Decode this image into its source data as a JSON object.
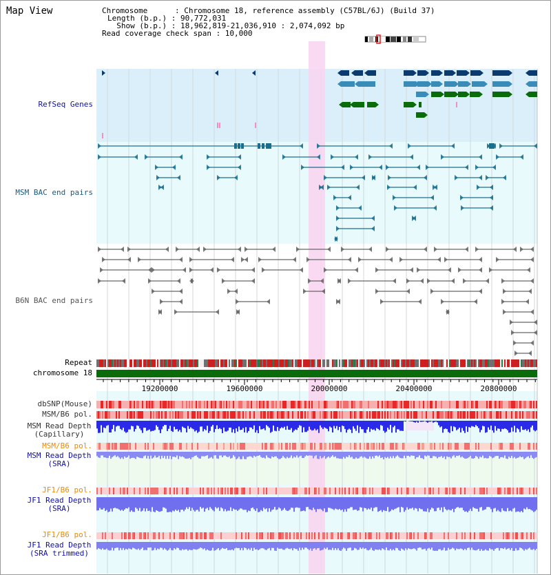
{
  "page": {
    "title": "Map View"
  },
  "info": {
    "chromosome": "Chromosome      : Chromosome 18, reference assembly (C57BL/6J) (Build 37)",
    "length": "Length (b.p.) : 90,772,031",
    "show": "  Show (b.p.) : 18,962,819-21,036,910 : 2,074,092 bp",
    "coverage": "Read coverage check span : 10,000"
  },
  "tracks": {
    "refseq": "RefSeq Genes",
    "msm_bac": "MSM BAC end pairs",
    "b6n_bac": "B6N BAC end pairs",
    "repeat": "Repeat",
    "chromosome": "chromosome 18",
    "dbsnp": "dbSNP(Mouse)",
    "msm_pol": "MSM/B6 pol.",
    "msm_depth_cap_1": "MSM Read Depth",
    "msm_depth_cap_2": "(Capillary)",
    "msm_pol2": "MSM/B6 pol.",
    "msm_depth_sra_1": "MSM Read Depth",
    "msm_depth_sra_2": "(SRA)",
    "jf1_pol": "JF1/B6 pol.",
    "jf1_depth_sra_1": "JF1 Read Depth",
    "jf1_depth_sra_2": "(SRA)",
    "jf1_pol2": "JF1/B6 pol.",
    "jf1_depth_trim_1": "JF1 Read Depth",
    "jf1_depth_trim_2": "(SRA trimmed)"
  },
  "axis": {
    "ticks": [
      "19200000",
      "19600000",
      "20000000",
      "20400000",
      "20800000"
    ]
  },
  "colors": {
    "refseq_bg": "#dbeffb",
    "msm_bg": "#e8fafb",
    "b6n_bg": "#ffffff",
    "highlight": "#f9d4f0",
    "gene_dark": "#0a3a6e",
    "gene_mid": "#3a8cb8",
    "gene_green": "#0a6b0a",
    "msm_line": "#1a6e8c",
    "b6n_line": "#555555",
    "snp_red": "#e83030",
    "depth_blue": "#2020e8",
    "depth_light": "#8080f0",
    "label_blue": "#1010a0",
    "label_orange": "#e88c00",
    "label_teal": "#1a5a7a"
  }
}
